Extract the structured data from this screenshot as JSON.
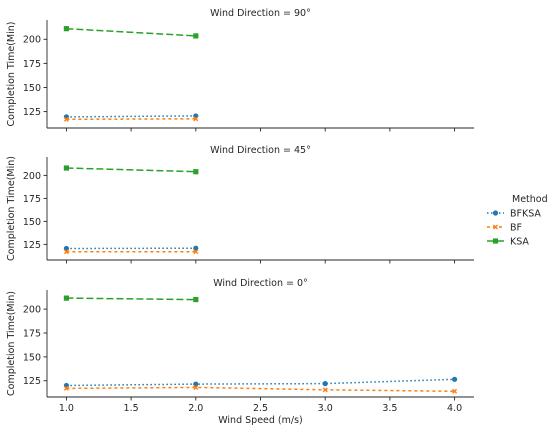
{
  "chart_data": {
    "type": "line",
    "xlabel": "Wind Speed (m/s)",
    "ylabel": "Completion Time(Min)",
    "legend": {
      "title": "Method",
      "placement": "right",
      "entries": [
        "BFKSA",
        "BF",
        "KSA"
      ]
    },
    "colors": {
      "BFKSA": "#1f77b4",
      "BF": "#ff7f0e",
      "KSA": "#2ca02c"
    },
    "xlim": [
      0.85,
      4.15
    ],
    "ylim": [
      108,
      220
    ],
    "xticks": [
      "1.0",
      "1.5",
      "2.0",
      "2.5",
      "3.0",
      "3.5",
      "4.0"
    ],
    "yticks": [
      "125",
      "150",
      "175",
      "200"
    ],
    "grid": false,
    "panels": [
      {
        "title": "Wind Direction = 90°",
        "series": [
          {
            "name": "BFKSA",
            "x": [
              1.0,
              2.0
            ],
            "y": [
              119.5,
              120.5
            ]
          },
          {
            "name": "BF",
            "x": [
              1.0,
              2.0
            ],
            "y": [
              117.0,
              117.5
            ]
          },
          {
            "name": "KSA",
            "x": [
              1.0,
              2.0
            ],
            "y": [
              211.0,
              203.5
            ]
          }
        ]
      },
      {
        "title": "Wind Direction = 45°",
        "series": [
          {
            "name": "BFKSA",
            "x": [
              1.0,
              2.0
            ],
            "y": [
              120.5,
              120.8
            ]
          },
          {
            "name": "BF",
            "x": [
              1.0,
              2.0
            ],
            "y": [
              117.0,
              117.0
            ]
          },
          {
            "name": "KSA",
            "x": [
              1.0,
              2.0
            ],
            "y": [
              208.0,
              204.0
            ]
          }
        ]
      },
      {
        "title": "Wind Direction = 0°",
        "series": [
          {
            "name": "BFKSA",
            "x": [
              1.0,
              2.0,
              3.0,
              4.0
            ],
            "y": [
              120.0,
              121.5,
              122.0,
              126.5
            ]
          },
          {
            "name": "BF",
            "x": [
              1.0,
              2.0,
              3.0,
              4.0
            ],
            "y": [
              117.0,
              118.0,
              115.5,
              114.0
            ]
          },
          {
            "name": "KSA",
            "x": [
              1.0,
              2.0
            ],
            "y": [
              211.5,
              210.0
            ]
          }
        ]
      }
    ]
  }
}
